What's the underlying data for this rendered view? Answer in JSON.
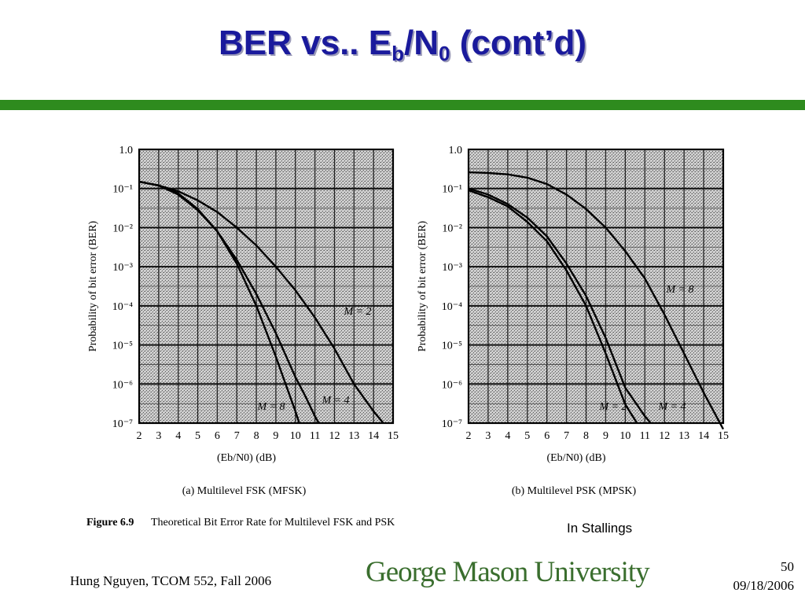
{
  "slide": {
    "title_main": "BER vs.. E",
    "title_sub_b": "b",
    "title_slash": "/N",
    "title_sub_0": "0",
    "title_end": " (cont’d)",
    "accent_color": "#2e8b1e",
    "title_color": "#1a1a9c"
  },
  "figure": {
    "caption_label": "Figure 6.9",
    "caption_text": "Theoretical Bit Error Rate for Multilevel FSK and PSK",
    "source_note": "In Stallings"
  },
  "footer": {
    "author": "Hung Nguyen, TCOM 552, Fall 2006",
    "logo_text": "George Mason University",
    "page_number": "50",
    "date": "09/18/2006"
  },
  "chart_data": [
    {
      "type": "line",
      "subtitle": "(a) Multilevel FSK (MFSK)",
      "xlabel": "(Eb/N0) (dB)",
      "ylabel": "Probability of bit error (BER)",
      "xlim": [
        2,
        15
      ],
      "ylim": [
        1e-07,
        1.0
      ],
      "yscale": "log",
      "grid": true,
      "x_ticks": [
        "2",
        "3",
        "4",
        "5",
        "6",
        "7",
        "8",
        "9",
        "10",
        "11",
        "12",
        "13",
        "14",
        "15"
      ],
      "y_ticks": [
        "1.0",
        "10⁻¹",
        "10⁻²",
        "10⁻³",
        "10⁻⁴",
        "10⁻⁵",
        "10⁻⁶",
        "10⁻⁷"
      ],
      "series": [
        {
          "name": "M = 2",
          "x": [
            2,
            3,
            4,
            5,
            6,
            7,
            8,
            9,
            10,
            11,
            12,
            13,
            14,
            14.5
          ],
          "y": [
            0.15,
            0.12,
            0.085,
            0.05,
            0.025,
            0.01,
            0.0035,
            0.001,
            0.00025,
            5e-05,
            8e-06,
            1e-06,
            2e-07,
            1e-07
          ]
        },
        {
          "name": "M = 4",
          "x": [
            2,
            3,
            4,
            5,
            6,
            7,
            8,
            9,
            10,
            10.5,
            11,
            11.2
          ],
          "y": [
            0.15,
            0.12,
            0.07,
            0.028,
            0.008,
            0.0015,
            0.0002,
            2e-05,
            1.5e-06,
            5e-07,
            1.5e-07,
            1e-07
          ]
        },
        {
          "name": "M = 8",
          "x": [
            2,
            3,
            4,
            5,
            6,
            7,
            8,
            9,
            9.5,
            10,
            10.2
          ],
          "y": [
            0.15,
            0.12,
            0.075,
            0.03,
            0.008,
            0.0012,
            0.0001,
            5e-06,
            1e-06,
            2e-07,
            1e-07
          ]
        }
      ],
      "annotations": [
        "M = 2",
        "M = 4",
        "M = 8"
      ]
    },
    {
      "type": "line",
      "subtitle": "(b) Multilevel PSK (MPSK)",
      "xlabel": "(Eb/N0) (dB)",
      "ylabel": "Probability of bit error (BER)",
      "xlim": [
        2,
        15
      ],
      "ylim": [
        1e-07,
        1.0
      ],
      "yscale": "log",
      "grid": true,
      "x_ticks": [
        "2",
        "3",
        "4",
        "5",
        "6",
        "7",
        "8",
        "9",
        "10",
        "11",
        "12",
        "13",
        "14",
        "15"
      ],
      "y_ticks": [
        "1.0",
        "10⁻¹",
        "10⁻²",
        "10⁻³",
        "10⁻⁴",
        "10⁻⁵",
        "10⁻⁶",
        "10⁻⁷"
      ],
      "series": [
        {
          "name": "M = 2",
          "x": [
            2,
            3,
            4,
            5,
            6,
            7,
            8,
            9,
            10,
            10.6
          ],
          "y": [
            0.09,
            0.06,
            0.035,
            0.014,
            0.0045,
            0.0008,
            0.0001,
            6e-06,
            3e-07,
            1e-07
          ]
        },
        {
          "name": "M = 4",
          "x": [
            2,
            3,
            4,
            5,
            6,
            7,
            8,
            9,
            10,
            11,
            11.3
          ],
          "y": [
            0.1,
            0.07,
            0.04,
            0.018,
            0.006,
            0.0012,
            0.00018,
            1.5e-05,
            8e-07,
            1.5e-07,
            1e-07
          ]
        },
        {
          "name": "M = 8",
          "x": [
            2,
            3,
            4,
            5,
            6,
            7,
            8,
            9,
            10,
            11,
            12,
            13,
            14,
            15
          ],
          "y": [
            0.26,
            0.25,
            0.23,
            0.19,
            0.13,
            0.07,
            0.03,
            0.01,
            0.0025,
            0.0005,
            6e-05,
            6e-06,
            6e-07,
            7e-08
          ]
        }
      ],
      "annotations": [
        "M = 8",
        "M = 2",
        "M = 4"
      ]
    }
  ]
}
